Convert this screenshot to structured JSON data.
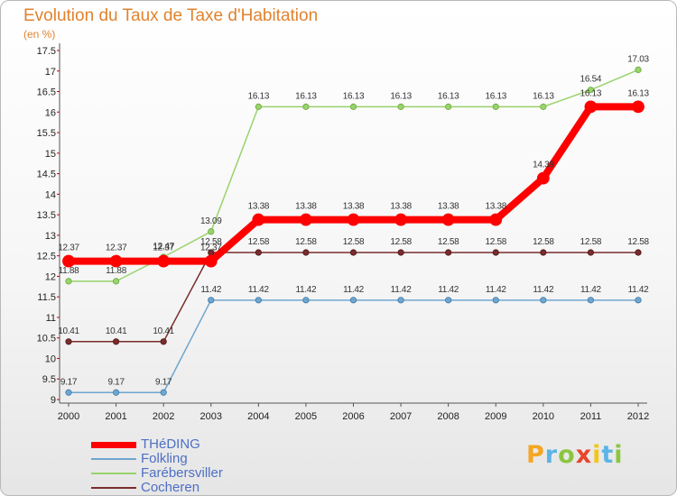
{
  "chart_data": {
    "type": "line",
    "title": "Evolution du Taux de Taxe d'Habitation",
    "subtitle": "(en %)",
    "xlabel": "",
    "ylabel": "",
    "x": [
      "2000",
      "2001",
      "2002",
      "2003",
      "2004",
      "2005",
      "2006",
      "2007",
      "2008",
      "2009",
      "2010",
      "2011",
      "2012"
    ],
    "ylim": [
      9,
      17.5
    ],
    "yticks": [
      "9",
      "9.5",
      "10",
      "10.5",
      "11",
      "11.5",
      "12",
      "12.5",
      "13",
      "13.5",
      "14",
      "14.5",
      "15",
      "15.5",
      "16",
      "16.5",
      "17",
      "17.5"
    ],
    "grid": false,
    "legend_position": "bottom-left",
    "series": [
      {
        "name": "Faréb ersviller",
        "color": "#99d36b",
        "values": [
          11.88,
          11.88,
          12.47,
          13.09,
          16.13,
          16.13,
          16.13,
          16.13,
          16.13,
          16.13,
          16.13,
          16.54,
          17.03
        ]
      },
      {
        "name": "Folkling",
        "color": "#6fa6cf",
        "values": [
          9.17,
          9.17,
          9.17,
          11.42,
          11.42,
          11.42,
          11.42,
          11.42,
          11.42,
          11.42,
          11.42,
          11.42,
          11.42
        ]
      },
      {
        "name": "Cocheren",
        "color": "#7a2c2c",
        "values": [
          10.41,
          10.41,
          10.41,
          12.58,
          12.58,
          12.58,
          12.58,
          12.58,
          12.58,
          12.58,
          12.58,
          12.58,
          12.58
        ]
      },
      {
        "name": "THéDING",
        "color": "#ff0000",
        "values": [
          12.37,
          12.37,
          12.37,
          12.37,
          13.38,
          13.38,
          13.38,
          13.38,
          13.38,
          13.38,
          14.39,
          16.13,
          16.13
        ]
      }
    ]
  },
  "legend": [
    "THéDING",
    "Folkling",
    "Farébersviller",
    "Cocheren"
  ],
  "logo": {
    "letters": [
      "P",
      "r",
      "o",
      "x",
      "i",
      "t",
      "i"
    ],
    "colors": [
      "#f5a623",
      "#5bb4e5",
      "#8cc63f",
      "#e8452c",
      "#f5c518",
      "#5bb4e5",
      "#8cc63f"
    ]
  }
}
